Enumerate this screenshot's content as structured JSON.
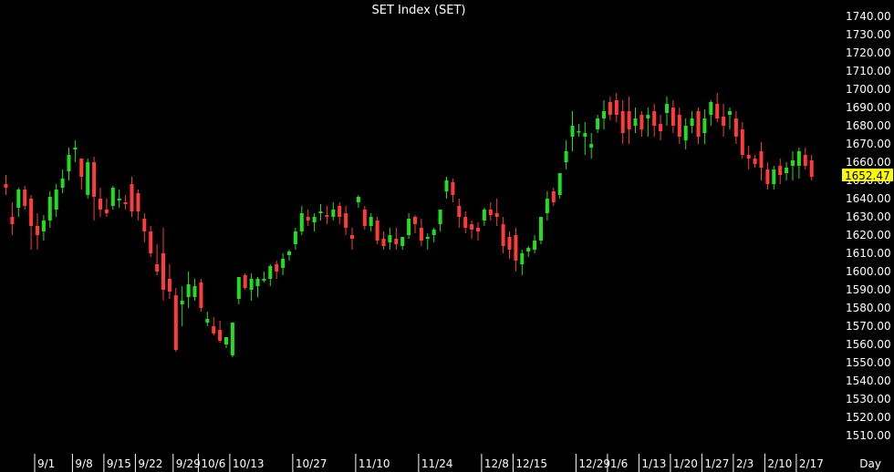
{
  "chart_data": {
    "type": "candlestick",
    "title": "SET Index (SET)",
    "period_label": "Day",
    "last_value_label": "1652.47",
    "ylim": [
      1500,
      1745
    ],
    "y_ticks": [
      "1510.00",
      "1520.00",
      "1530.00",
      "1540.00",
      "1550.00",
      "1560.00",
      "1570.00",
      "1580.00",
      "1590.00",
      "1600.00",
      "1610.00",
      "1620.00",
      "1630.00",
      "1640.00",
      "1650.00",
      "1660.00",
      "1670.00",
      "1680.00",
      "1690.00",
      "1700.00",
      "1710.00",
      "1720.00",
      "1730.00",
      "1740.00"
    ],
    "x_ticks": [
      "9/1",
      "9/8",
      "9/15",
      "9/22",
      "9/29",
      "10/6",
      "10/13",
      "10/27",
      "11/10",
      "11/24",
      "12/8",
      "12/15",
      "12/29",
      "1/6",
      "1/13",
      "1/20",
      "1/27",
      "2/3",
      "2/10",
      "2/17"
    ],
    "x_tick_index": [
      5,
      11,
      16,
      21,
      27,
      31,
      36,
      46,
      56,
      66,
      76,
      81,
      91,
      96,
      101,
      106,
      111,
      116,
      121,
      126
    ],
    "colors": {
      "up": "#22dd22",
      "down": "#ff3b3b",
      "background": "#000000",
      "text": "#ffffff",
      "last_value_bg": "#ffff00"
    },
    "candles": [
      [
        1648,
        1653,
        1642,
        1646
      ],
      [
        1630,
        1638,
        1620,
        1626
      ],
      [
        1635,
        1646,
        1630,
        1645
      ],
      [
        1645,
        1647,
        1634,
        1636
      ],
      [
        1640,
        1642,
        1612,
        1625
      ],
      [
        1625,
        1632,
        1612,
        1620
      ],
      [
        1622,
        1631,
        1617,
        1628
      ],
      [
        1628,
        1644,
        1624,
        1641
      ],
      [
        1634,
        1648,
        1630,
        1645
      ],
      [
        1646,
        1656,
        1643,
        1651
      ],
      [
        1655,
        1668,
        1650,
        1664
      ],
      [
        1667,
        1672,
        1660,
        1668
      ],
      [
        1662,
        1662,
        1645,
        1652
      ],
      [
        1642,
        1662,
        1640,
        1660
      ],
      [
        1660,
        1663,
        1628,
        1641
      ],
      [
        1640,
        1646,
        1630,
        1634
      ],
      [
        1634,
        1640,
        1630,
        1632
      ],
      [
        1636,
        1647,
        1634,
        1646
      ],
      [
        1639,
        1645,
        1635,
        1640
      ],
      [
        1638,
        1642,
        1634,
        1637
      ],
      [
        1648,
        1652,
        1630,
        1633
      ],
      [
        1643,
        1645,
        1628,
        1633
      ],
      [
        1629,
        1632,
        1616,
        1622
      ],
      [
        1622,
        1625,
        1608,
        1610
      ],
      [
        1604,
        1615,
        1598,
        1600
      ],
      [
        1610,
        1624,
        1584,
        1590
      ],
      [
        1596,
        1604,
        1585,
        1589
      ],
      [
        1587,
        1591,
        1556,
        1557
      ],
      [
        1582,
        1592,
        1570,
        1584
      ],
      [
        1586,
        1600,
        1580,
        1593
      ],
      [
        1586,
        1596,
        1584,
        1592
      ],
      [
        1594,
        1596,
        1578,
        1580
      ],
      [
        1572,
        1578,
        1570,
        1574
      ],
      [
        1570,
        1575,
        1565,
        1566
      ],
      [
        1568,
        1573,
        1561,
        1562
      ],
      [
        1560,
        1564,
        1558,
        1564
      ],
      [
        1554,
        1570,
        1553,
        1572
      ],
      [
        1585,
        1596,
        1582,
        1597
      ],
      [
        1598,
        1599,
        1590,
        1591
      ],
      [
        1590,
        1599,
        1584,
        1596
      ],
      [
        1592,
        1597,
        1586,
        1596
      ],
      [
        1595,
        1600,
        1594,
        1596
      ],
      [
        1596,
        1604,
        1592,
        1603
      ],
      [
        1604,
        1606,
        1596,
        1600
      ],
      [
        1602,
        1610,
        1598,
        1607
      ],
      [
        1609,
        1612,
        1606,
        1611
      ],
      [
        1615,
        1624,
        1612,
        1622
      ],
      [
        1622,
        1636,
        1620,
        1632
      ],
      [
        1630,
        1634,
        1625,
        1628
      ],
      [
        1627,
        1632,
        1622,
        1630
      ],
      [
        1632,
        1637,
        1628,
        1633
      ],
      [
        1631,
        1636,
        1626,
        1630
      ],
      [
        1630,
        1638,
        1628,
        1634
      ],
      [
        1636,
        1638,
        1626,
        1630
      ],
      [
        1632,
        1636,
        1620,
        1624
      ],
      [
        1620,
        1624,
        1612,
        1618
      ],
      [
        1638,
        1642,
        1635,
        1641
      ],
      [
        1634,
        1636,
        1623,
        1625
      ],
      [
        1625,
        1632,
        1622,
        1630
      ],
      [
        1628,
        1630,
        1615,
        1617
      ],
      [
        1618,
        1622,
        1612,
        1614
      ],
      [
        1616,
        1624,
        1612,
        1620
      ],
      [
        1618,
        1624,
        1612,
        1615
      ],
      [
        1614,
        1618,
        1612,
        1619
      ],
      [
        1620,
        1632,
        1618,
        1629
      ],
      [
        1630,
        1631,
        1621,
        1626
      ],
      [
        1624,
        1629,
        1614,
        1617
      ],
      [
        1618,
        1621,
        1612,
        1619
      ],
      [
        1620,
        1624,
        1616,
        1623
      ],
      [
        1626,
        1634,
        1622,
        1634
      ],
      [
        1644,
        1652,
        1640,
        1650
      ],
      [
        1649,
        1651,
        1638,
        1642
      ],
      [
        1636,
        1640,
        1624,
        1630
      ],
      [
        1630,
        1633,
        1621,
        1624
      ],
      [
        1626,
        1628,
        1618,
        1623
      ],
      [
        1624,
        1627,
        1617,
        1622
      ],
      [
        1628,
        1635,
        1625,
        1634
      ],
      [
        1634,
        1638,
        1628,
        1631
      ],
      [
        1632,
        1640,
        1625,
        1630
      ],
      [
        1626,
        1630,
        1610,
        1614
      ],
      [
        1619,
        1622,
        1607,
        1612
      ],
      [
        1620,
        1624,
        1600,
        1606
      ],
      [
        1604,
        1612,
        1598,
        1610
      ],
      [
        1611,
        1614,
        1608,
        1613
      ],
      [
        1612,
        1620,
        1610,
        1617
      ],
      [
        1617,
        1630,
        1615,
        1630
      ],
      [
        1632,
        1644,
        1628,
        1640
      ],
      [
        1644,
        1646,
        1636,
        1638
      ],
      [
        1642,
        1654,
        1640,
        1654
      ],
      [
        1660,
        1672,
        1656,
        1666
      ],
      [
        1674,
        1688,
        1666,
        1680
      ],
      [
        1677,
        1681,
        1674,
        1677
      ],
      [
        1674,
        1682,
        1664,
        1676
      ],
      [
        1668,
        1676,
        1662,
        1670
      ],
      [
        1678,
        1686,
        1676,
        1684
      ],
      [
        1684,
        1694,
        1678,
        1688
      ],
      [
        1693,
        1696,
        1683,
        1686
      ],
      [
        1694,
        1698,
        1682,
        1686
      ],
      [
        1688,
        1694,
        1670,
        1676
      ],
      [
        1688,
        1696,
        1670,
        1678
      ],
      [
        1680,
        1690,
        1676,
        1684
      ],
      [
        1686,
        1688,
        1674,
        1678
      ],
      [
        1684,
        1690,
        1674,
        1686
      ],
      [
        1688,
        1692,
        1674,
        1680
      ],
      [
        1681,
        1686,
        1672,
        1677
      ],
      [
        1687,
        1696,
        1680,
        1692
      ],
      [
        1690,
        1694,
        1676,
        1680
      ],
      [
        1686,
        1690,
        1670,
        1674
      ],
      [
        1672,
        1684,
        1667,
        1680
      ],
      [
        1680,
        1688,
        1676,
        1684
      ],
      [
        1688,
        1690,
        1670,
        1674
      ],
      [
        1676,
        1689,
        1670,
        1684
      ],
      [
        1686,
        1694,
        1680,
        1693
      ],
      [
        1692,
        1698,
        1682,
        1684
      ],
      [
        1685,
        1692,
        1674,
        1680
      ],
      [
        1686,
        1690,
        1678,
        1688
      ],
      [
        1684,
        1688,
        1670,
        1674
      ],
      [
        1678,
        1682,
        1662,
        1664
      ],
      [
        1664,
        1669,
        1656,
        1662
      ],
      [
        1662,
        1664,
        1657,
        1659
      ],
      [
        1666,
        1671,
        1650,
        1657
      ],
      [
        1656,
        1660,
        1645,
        1648
      ],
      [
        1648,
        1658,
        1645,
        1656
      ],
      [
        1658,
        1662,
        1648,
        1653
      ],
      [
        1654,
        1660,
        1650,
        1657
      ],
      [
        1658,
        1666,
        1650,
        1661
      ],
      [
        1658,
        1668,
        1651,
        1666
      ],
      [
        1664,
        1668,
        1656,
        1658
      ],
      [
        1661,
        1664,
        1650,
        1652
      ]
    ]
  }
}
